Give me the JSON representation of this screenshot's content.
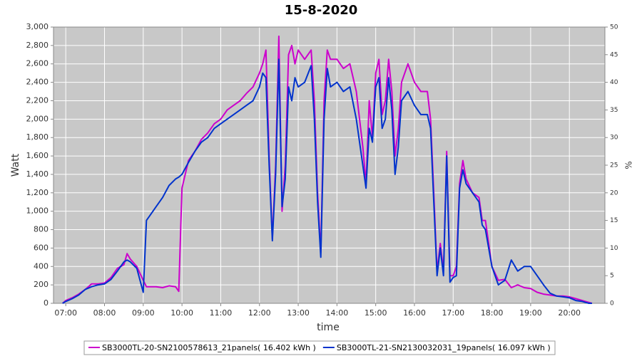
{
  "chart_data": {
    "type": "line",
    "title": "15-8-2020",
    "x_label": "time",
    "y_label": "Watt",
    "y2_label": "%",
    "x": [
      "06:55",
      "07:00",
      "07:10",
      "07:20",
      "07:30",
      "07:40",
      "07:50",
      "08:00",
      "08:10",
      "08:20",
      "08:30",
      "08:35",
      "08:40",
      "08:50",
      "09:00",
      "09:05",
      "09:10",
      "09:20",
      "09:30",
      "09:40",
      "09:50",
      "09:55",
      "10:00",
      "10:10",
      "10:20",
      "10:30",
      "10:40",
      "10:50",
      "11:00",
      "11:10",
      "11:20",
      "11:30",
      "11:40",
      "11:50",
      "12:00",
      "12:05",
      "12:10",
      "12:15",
      "12:20",
      "12:25",
      "12:30",
      "12:35",
      "12:40",
      "12:45",
      "12:50",
      "12:55",
      "13:00",
      "13:10",
      "13:20",
      "13:25",
      "13:30",
      "13:35",
      "13:40",
      "13:45",
      "13:50",
      "14:00",
      "14:10",
      "14:20",
      "14:30",
      "14:40",
      "14:45",
      "14:50",
      "14:55",
      "15:00",
      "15:05",
      "15:10",
      "15:15",
      "15:20",
      "15:25",
      "15:30",
      "15:35",
      "15:40",
      "15:50",
      "16:00",
      "16:10",
      "16:20",
      "16:25",
      "16:30",
      "16:35",
      "16:40",
      "16:45",
      "16:50",
      "16:55",
      "17:00",
      "17:05",
      "17:10",
      "17:15",
      "17:20",
      "17:30",
      "17:40",
      "17:45",
      "17:50",
      "18:00",
      "18:10",
      "18:20",
      "18:30",
      "18:40",
      "18:50",
      "19:00",
      "19:10",
      "19:20",
      "19:30",
      "19:40",
      "19:50",
      "20:00",
      "20:10",
      "20:20",
      "20:30",
      "20:35"
    ],
    "series": [
      {
        "name": "SB3000TL-20-SN2100578613_21panels( 16.402 kWh )",
        "color": "#cc00cc",
        "values": [
          0,
          30,
          60,
          100,
          150,
          210,
          210,
          220,
          280,
          380,
          420,
          540,
          480,
          400,
          250,
          180,
          180,
          180,
          170,
          190,
          180,
          130,
          1250,
          1550,
          1650,
          1780,
          1850,
          1950,
          2000,
          2100,
          2150,
          2200,
          2280,
          2350,
          2500,
          2600,
          2750,
          1600,
          700,
          1500,
          2900,
          1000,
          1500,
          2700,
          2800,
          2600,
          2750,
          2650,
          2750,
          2200,
          1200,
          550,
          2200,
          2750,
          2650,
          2650,
          2550,
          2600,
          2300,
          1700,
          1300,
          2200,
          1800,
          2500,
          2650,
          2050,
          2200,
          2650,
          2300,
          1600,
          1900,
          2400,
          2600,
          2400,
          2300,
          2300,
          2000,
          1200,
          350,
          650,
          350,
          1650,
          300,
          300,
          400,
          1300,
          1550,
          1350,
          1200,
          1150,
          900,
          900,
          400,
          250,
          260,
          170,
          200,
          170,
          160,
          120,
          100,
          90,
          80,
          80,
          70,
          50,
          30,
          10,
          0
        ]
      },
      {
        "name": "SB3000TL-21-SN2130032031_19panels( 16.097 kWh )",
        "color": "#0033cc",
        "values": [
          0,
          20,
          50,
          90,
          150,
          180,
          200,
          210,
          260,
          350,
          450,
          470,
          450,
          380,
          120,
          900,
          950,
          1050,
          1150,
          1280,
          1350,
          1370,
          1400,
          1530,
          1650,
          1750,
          1800,
          1900,
          1950,
          2000,
          2050,
          2100,
          2150,
          2200,
          2350,
          2500,
          2450,
          1500,
          680,
          1400,
          2650,
          1050,
          1350,
          2350,
          2200,
          2450,
          2350,
          2400,
          2580,
          2000,
          1100,
          500,
          2000,
          2550,
          2350,
          2400,
          2300,
          2350,
          2000,
          1500,
          1250,
          1900,
          1750,
          2350,
          2450,
          1900,
          2000,
          2450,
          2100,
          1400,
          1700,
          2200,
          2300,
          2150,
          2050,
          2050,
          1900,
          1100,
          300,
          600,
          300,
          1600,
          230,
          280,
          300,
          1250,
          1450,
          1300,
          1200,
          1100,
          850,
          800,
          400,
          200,
          250,
          470,
          350,
          400,
          400,
          300,
          200,
          110,
          80,
          70,
          60,
          30,
          20,
          0,
          0
        ]
      }
    ],
    "xlim": [
      "06:41",
      "20:55"
    ],
    "xticks": [
      "07:00",
      "08:00",
      "09:00",
      "10:00",
      "11:00",
      "12:00",
      "13:00",
      "14:00",
      "15:00",
      "16:00",
      "17:00",
      "18:00",
      "19:00",
      "20:00"
    ],
    "ylim": [
      0,
      3000
    ],
    "yticks": [
      0,
      200,
      400,
      600,
      800,
      {
        "value": 1000,
        "label": "1,000"
      },
      {
        "value": 1200,
        "label": "1,200"
      },
      {
        "value": 1400,
        "label": "1,400"
      },
      {
        "value": 1600,
        "label": "1,600"
      },
      {
        "value": 1800,
        "label": "1,800"
      },
      {
        "value": 2000,
        "label": "2,000"
      },
      {
        "value": 2200,
        "label": "2,200"
      },
      {
        "value": 2400,
        "label": "2,400"
      },
      {
        "value": 2600,
        "label": "2,600"
      },
      {
        "value": 2800,
        "label": "2,800"
      },
      {
        "value": 3000,
        "label": "3,000"
      }
    ],
    "y2lim": [
      0,
      50
    ],
    "y2ticks": [
      0,
      5,
      10,
      15,
      20,
      25,
      30,
      35,
      40,
      45,
      50
    ],
    "grid": true,
    "legend": "bottom"
  }
}
